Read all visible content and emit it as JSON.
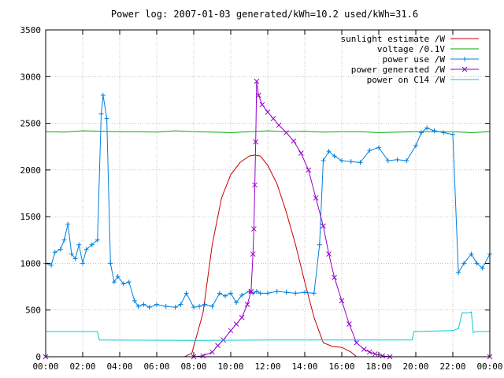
{
  "chart_data": {
    "type": "line",
    "title": "Power log: 2007-01-03 generated/kWh=10.2 used/kWh=31.6",
    "xlabel": "",
    "ylabel": "",
    "xlim": [
      0,
      24
    ],
    "ylim": [
      0,
      3500
    ],
    "grid": true,
    "legend_position": "top-right",
    "xticks": [
      "00:00",
      "02:00",
      "04:00",
      "06:00",
      "08:00",
      "10:00",
      "12:00",
      "14:00",
      "16:00",
      "18:00",
      "20:00",
      "22:00",
      "00:00"
    ],
    "yticks": [
      "0",
      "500",
      "1000",
      "1500",
      "2000",
      "2500",
      "3000",
      "3500"
    ],
    "series": [
      {
        "name": "sunlight estimate /W",
        "color": "#cc0000",
        "marker": "none",
        "x": [
          0,
          7.5,
          7.9,
          8.5,
          9.0,
          9.5,
          10.0,
          10.5,
          11.0,
          11.3,
          11.6,
          12.0,
          12.5,
          13.0,
          13.5,
          14.0,
          14.5,
          15.0,
          15.5,
          16.0,
          16.5,
          16.8,
          24
        ],
        "y": [
          0,
          0,
          40,
          470,
          1200,
          1700,
          1950,
          2080,
          2150,
          2160,
          2150,
          2050,
          1850,
          1550,
          1200,
          800,
          420,
          150,
          110,
          100,
          50,
          0,
          0
        ]
      },
      {
        "name": "voltage /0.1V",
        "color": "#00aa00",
        "marker": "none",
        "x": [
          0,
          1,
          2,
          3,
          4,
          5,
          6,
          7,
          8,
          9,
          10,
          11,
          12,
          13,
          14,
          15,
          16,
          17,
          18,
          19,
          20,
          21,
          22,
          23,
          24
        ],
        "y": [
          2410,
          2405,
          2420,
          2415,
          2410,
          2410,
          2405,
          2420,
          2410,
          2405,
          2400,
          2410,
          2420,
          2410,
          2415,
          2405,
          2410,
          2410,
          2400,
          2405,
          2410,
          2410,
          2410,
          2400,
          2410
        ]
      },
      {
        "name": "power use /W",
        "color": "#0080e0",
        "marker": "plus",
        "x": [
          0,
          0.3,
          0.5,
          0.8,
          1.0,
          1.2,
          1.4,
          1.6,
          1.8,
          2.0,
          2.2,
          2.5,
          2.8,
          3.0,
          3.1,
          3.3,
          3.5,
          3.7,
          3.9,
          4.2,
          4.5,
          4.8,
          5.0,
          5.3,
          5.6,
          6.0,
          6.5,
          7.0,
          7.3,
          7.6,
          8.0,
          8.3,
          8.6,
          9.0,
          9.4,
          9.7,
          10.0,
          10.3,
          10.6,
          11.0,
          11.2,
          11.4,
          11.6,
          12.0,
          12.5,
          13.0,
          13.5,
          14.0,
          14.5,
          14.8,
          15.0,
          15.3,
          15.6,
          16.0,
          16.5,
          17.0,
          17.5,
          18.0,
          18.5,
          19.0,
          19.5,
          20.0,
          20.3,
          20.6,
          21.0,
          21.5,
          22.0,
          22.3,
          22.6,
          23.0,
          23.3,
          23.6,
          24.0
        ],
        "y": [
          1000,
          980,
          1120,
          1150,
          1250,
          1420,
          1100,
          1050,
          1200,
          1000,
          1150,
          1200,
          1250,
          2600,
          2800,
          2550,
          1000,
          800,
          860,
          780,
          800,
          600,
          540,
          560,
          530,
          560,
          540,
          530,
          560,
          680,
          530,
          540,
          560,
          540,
          680,
          650,
          680,
          580,
          660,
          700,
          680,
          700,
          680,
          680,
          700,
          690,
          680,
          690,
          680,
          1200,
          2100,
          2200,
          2150,
          2100,
          2090,
          2080,
          2210,
          2240,
          2100,
          2110,
          2100,
          2260,
          2400,
          2450,
          2420,
          2400,
          2380,
          900,
          1000,
          1100,
          1000,
          950,
          1100
        ]
      },
      {
        "name": "power generated /W",
        "color": "#9900cc",
        "marker": "x",
        "x": [
          0,
          8.0,
          8.5,
          9.0,
          9.3,
          9.6,
          10.0,
          10.3,
          10.6,
          10.9,
          11.1,
          11.2,
          11.25,
          11.3,
          11.35,
          11.4,
          11.5,
          11.7,
          12.0,
          12.3,
          12.6,
          13.0,
          13.4,
          13.8,
          14.2,
          14.6,
          15.0,
          15.3,
          15.6,
          16.0,
          16.4,
          16.8,
          17.2,
          17.5,
          17.8,
          18.2,
          18.6,
          24
        ],
        "y": [
          0,
          0,
          10,
          50,
          120,
          180,
          280,
          350,
          420,
          560,
          700,
          1100,
          1370,
          1840,
          2300,
          2950,
          2800,
          2700,
          2620,
          2550,
          2480,
          2400,
          2310,
          2180,
          2000,
          1700,
          1400,
          1100,
          850,
          600,
          350,
          150,
          80,
          50,
          30,
          10,
          0,
          0
        ]
      },
      {
        "name": "power on C14 /W",
        "color": "#00cccc",
        "marker": "none",
        "x": [
          0,
          2.8,
          2.9,
          8.0,
          12.0,
          16.0,
          19.8,
          19.9,
          22.0,
          22.3,
          22.5,
          22.8,
          23.0,
          23.1,
          23.3,
          24.0
        ],
        "y": [
          270,
          270,
          180,
          175,
          180,
          180,
          180,
          270,
          280,
          300,
          470,
          470,
          480,
          260,
          270,
          270
        ]
      }
    ]
  }
}
